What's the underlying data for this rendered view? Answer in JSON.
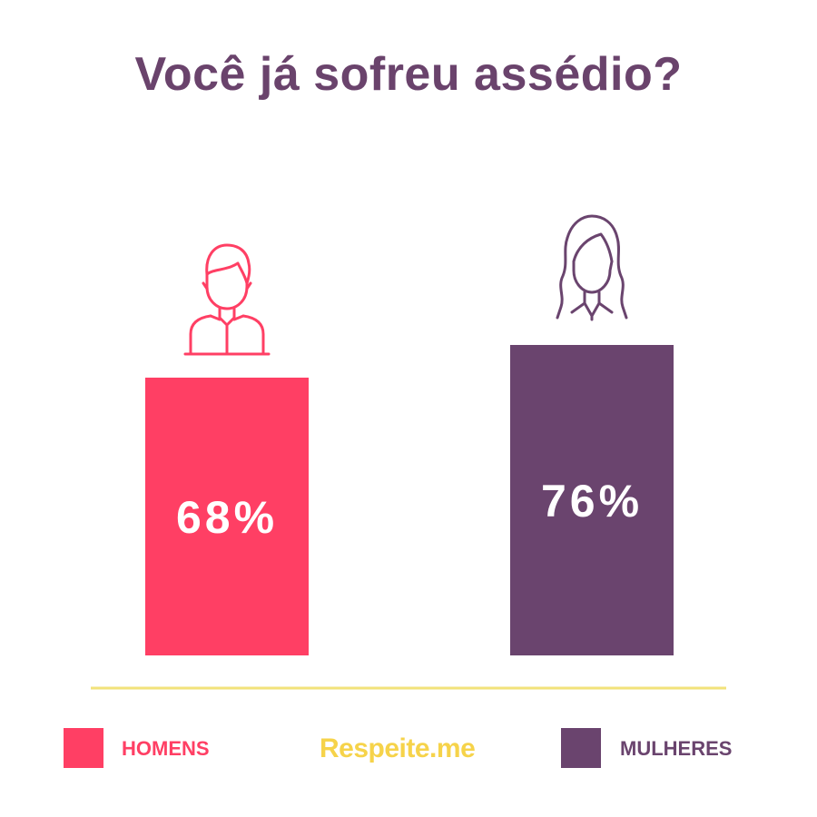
{
  "chart_data": {
    "type": "bar",
    "title": "Você já sofreu assédio?",
    "categories": [
      "HOMENS",
      "MULHERES"
    ],
    "values": [
      68,
      76
    ],
    "value_labels": [
      "68%",
      "76%"
    ],
    "colors": [
      "#ff3f64",
      "#6a446e"
    ],
    "ylim": [
      0,
      100
    ],
    "icons": [
      "man-icon",
      "woman-icon"
    ],
    "grid": false,
    "legend": "bottom"
  },
  "brand": {
    "name": "Respeite.me",
    "color": "#f6d34a"
  },
  "colors": {
    "title": "#6a436c",
    "baseline": "#f2e27a"
  }
}
